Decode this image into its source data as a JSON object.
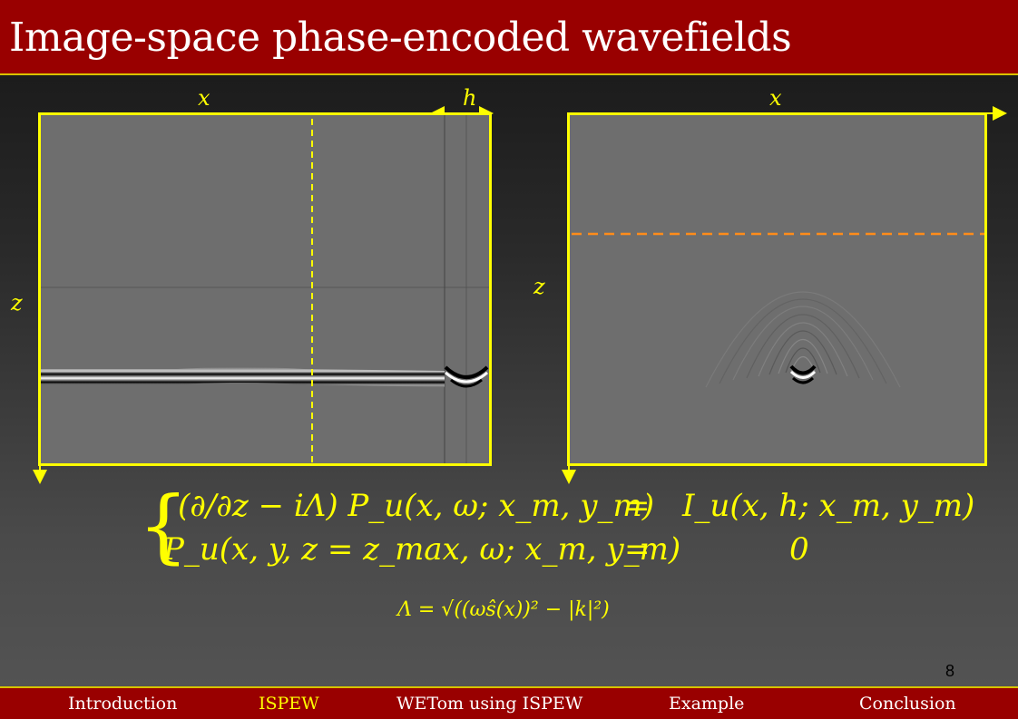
{
  "slide": {
    "title": "Image-space phase-encoded wavefields",
    "page_number": "8"
  },
  "left_figure": {
    "x_label": "x",
    "h_label": "h",
    "z_label": "z"
  },
  "right_figure": {
    "x_label": "x",
    "z_label": "z"
  },
  "equations": {
    "row1_lhs": "(∂/∂z − iΛ) P_u(x, ω; x_m, y_m)",
    "row1_eq": "=",
    "row1_rhs": "I_u(x, h; x_m, y_m)",
    "row2_lhs": "P_u(x, y, z = z_max, ω; x_m, y_m)",
    "row2_eq": "=",
    "row2_rhs": "0",
    "lambda_def": "Λ = √((ωŝ(x))² − |k|²)"
  },
  "nav": {
    "items": [
      {
        "label": "Introduction"
      },
      {
        "label": "ISPEW"
      },
      {
        "label": "WETom using ISPEW"
      },
      {
        "label": "Example"
      },
      {
        "label": "Conclusion"
      }
    ],
    "active": "ISPEW"
  },
  "colors": {
    "title_bg": "#990000",
    "accent": "#ffff00",
    "marker_line": "#ff8c1a",
    "panel_gray": "#6e6e6e"
  }
}
